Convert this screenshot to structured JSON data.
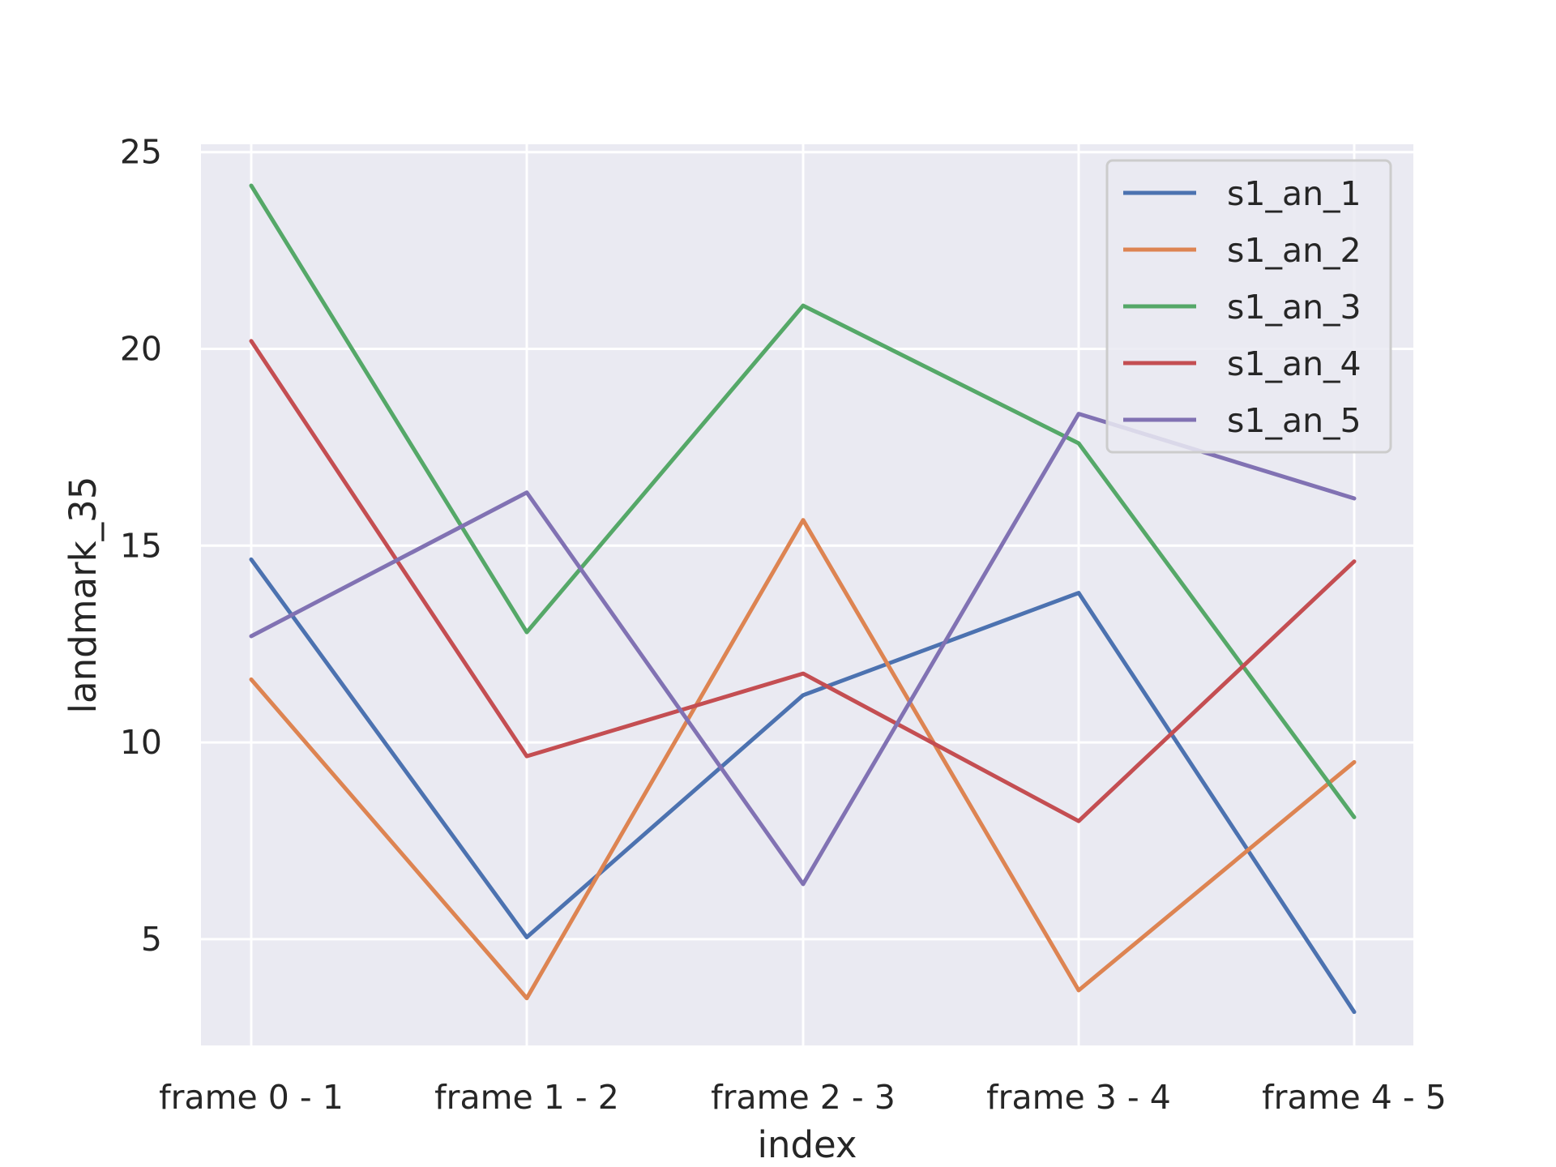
{
  "chart_data": {
    "type": "line",
    "title": "",
    "xlabel": "index",
    "ylabel": "landmark_35",
    "categories": [
      "frame 0 - 1",
      "frame 1 - 2",
      "frame 2 - 3",
      "frame 3 - 4",
      "frame 4 - 5"
    ],
    "ylim": [
      2.3,
      25.2
    ],
    "yticks": [
      5,
      10,
      15,
      20,
      25
    ],
    "grid": true,
    "legend_position": "top-right",
    "background": "#eaeaf2",
    "series": [
      {
        "name": "s1_an_1",
        "color": "#4c72b0",
        "values": [
          14.65,
          5.05,
          11.2,
          13.8,
          3.15
        ]
      },
      {
        "name": "s1_an_2",
        "color": "#dd8452",
        "values": [
          11.6,
          3.5,
          15.65,
          3.7,
          9.5
        ]
      },
      {
        "name": "s1_an_3",
        "color": "#55a868",
        "values": [
          24.15,
          12.8,
          21.1,
          17.6,
          8.1
        ]
      },
      {
        "name": "s1_an_4",
        "color": "#c44e52",
        "values": [
          20.2,
          9.65,
          11.75,
          8.0,
          14.6
        ]
      },
      {
        "name": "s1_an_5",
        "color": "#8172b3",
        "values": [
          12.7,
          16.35,
          6.4,
          18.35,
          16.2
        ]
      }
    ]
  }
}
